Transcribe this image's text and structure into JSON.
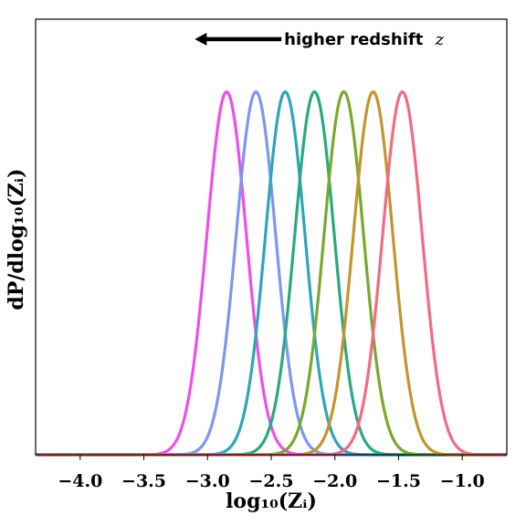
{
  "chart_data": {
    "type": "line",
    "xlabel": "log₁₀(Zᵢ)",
    "ylabel": "dP/dlog₁₀(Zᵢ)",
    "xlim": [
      -4.35,
      -0.65
    ],
    "ylim": [
      0,
      1.2
    ],
    "xticks": [
      -4.0,
      -3.5,
      -3.0,
      -2.5,
      -2.0,
      -1.5,
      -1.0
    ],
    "xtick_labels": [
      "−4.0",
      "−3.5",
      "−3.0",
      "−2.5",
      "−2.0",
      "−1.5",
      "−1.0"
    ],
    "yticks_shown": false,
    "grid": false,
    "legend": "none",
    "annotation": {
      "text": "higher redshift",
      "symbol": "z",
      "arrow_direction": "left",
      "arrow_from_x": -2.42,
      "arrow_to_x": -3.1,
      "y": 1.145
    },
    "series": [
      {
        "mean": -2.85,
        "sigma": 0.155,
        "peak": 1.0,
        "color": "#f04ee6"
      },
      {
        "mean": -2.62,
        "sigma": 0.155,
        "peak": 1.0,
        "color": "#7d97ee"
      },
      {
        "mean": -2.39,
        "sigma": 0.155,
        "peak": 1.0,
        "color": "#2ea6b8"
      },
      {
        "mean": -2.16,
        "sigma": 0.155,
        "peak": 1.0,
        "color": "#2aa884"
      },
      {
        "mean": -1.93,
        "sigma": 0.155,
        "peak": 1.0,
        "color": "#7aa82e"
      },
      {
        "mean": -1.7,
        "sigma": 0.155,
        "peak": 1.0,
        "color": "#c2952e"
      },
      {
        "mean": -1.47,
        "sigma": 0.155,
        "peak": 1.0,
        "color": "#f26b82"
      }
    ]
  }
}
